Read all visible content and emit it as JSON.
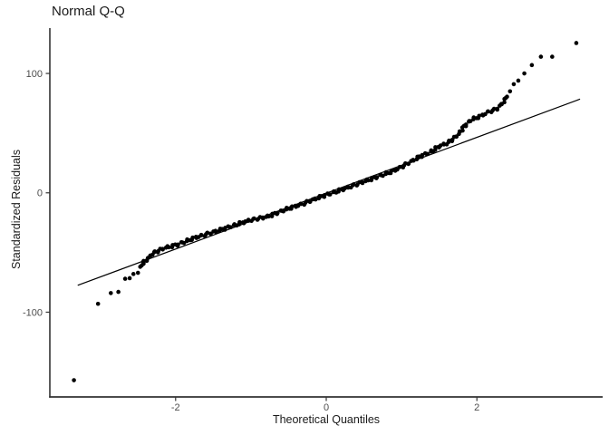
{
  "chart_data": {
    "type": "scatter",
    "title": "Normal Q-Q",
    "xlabel": "Theoretical Quantiles",
    "ylabel": "Standardized Residuals",
    "xlim": [
      -3.67,
      3.67
    ],
    "ylim": [
      -171,
      138
    ],
    "grid": false,
    "legend_position": "none",
    "x_ticks": [
      {
        "value": -2,
        "label": "-2"
      },
      {
        "value": 0,
        "label": "0"
      },
      {
        "value": 2,
        "label": "2"
      }
    ],
    "y_ticks": [
      {
        "value": 100,
        "label": "100"
      },
      {
        "value": 0,
        "label": "0"
      },
      {
        "value": -100,
        "label": "-100"
      }
    ],
    "colors": {
      "point": "#000000",
      "reference_line": "#000000",
      "axis": "#333333",
      "tick_label": "#4d4d4d",
      "text": "#1a1a1a",
      "background": "#ffffff"
    },
    "reference_line": {
      "x": [
        -3.3,
        3.37
      ],
      "y": [
        -77.5,
        78.5
      ]
    },
    "points_lower_tail": [
      [
        -3.35,
        -157.0
      ],
      [
        -3.03,
        -93.0
      ],
      [
        -2.86,
        -84.0
      ],
      [
        -2.76,
        -83.0
      ],
      [
        -2.67,
        -72.0
      ],
      [
        -2.61,
        -71.5
      ],
      [
        -2.56,
        -68.0
      ],
      [
        -2.5,
        -67.0
      ],
      [
        -2.47,
        -62.0
      ],
      [
        -2.43,
        -58.0
      ]
    ],
    "band_waypoints": [
      [
        -2.45,
        -60.0
      ],
      [
        -2.38,
        -56.0
      ],
      [
        -2.31,
        -51.0
      ],
      [
        -2.16,
        -46.5
      ],
      [
        -1.98,
        -43.5
      ],
      [
        -1.74,
        -37.5
      ],
      [
        -1.5,
        -33.0
      ],
      [
        -1.26,
        -28.0
      ],
      [
        -1.02,
        -23.0
      ],
      [
        -0.78,
        -20.0
      ],
      [
        -0.54,
        -14.0
      ],
      [
        -0.3,
        -9.0
      ],
      [
        -0.06,
        -3.0
      ],
      [
        0.18,
        2.0
      ],
      [
        0.42,
        7.5
      ],
      [
        0.66,
        13.0
      ],
      [
        0.9,
        18.5
      ],
      [
        1.08,
        24.5
      ],
      [
        1.26,
        31.0
      ],
      [
        1.38,
        34.0
      ],
      [
        1.5,
        39.0
      ],
      [
        1.62,
        42.0
      ],
      [
        1.74,
        48.0
      ],
      [
        1.83,
        55.5
      ],
      [
        1.92,
        61.0
      ],
      [
        2.04,
        64.0
      ],
      [
        2.16,
        68.0
      ],
      [
        2.26,
        70.0
      ],
      [
        2.34,
        75.0
      ],
      [
        2.4,
        80.5
      ]
    ],
    "points_upper_tail": [
      [
        2.44,
        85.0
      ],
      [
        2.49,
        91.0
      ],
      [
        2.55,
        94.0
      ],
      [
        2.63,
        100.0
      ],
      [
        2.73,
        107.0
      ],
      [
        2.85,
        114.0
      ],
      [
        3.0,
        114.0
      ],
      [
        3.32,
        125.5
      ]
    ],
    "point_radius_px": 2.3
  }
}
